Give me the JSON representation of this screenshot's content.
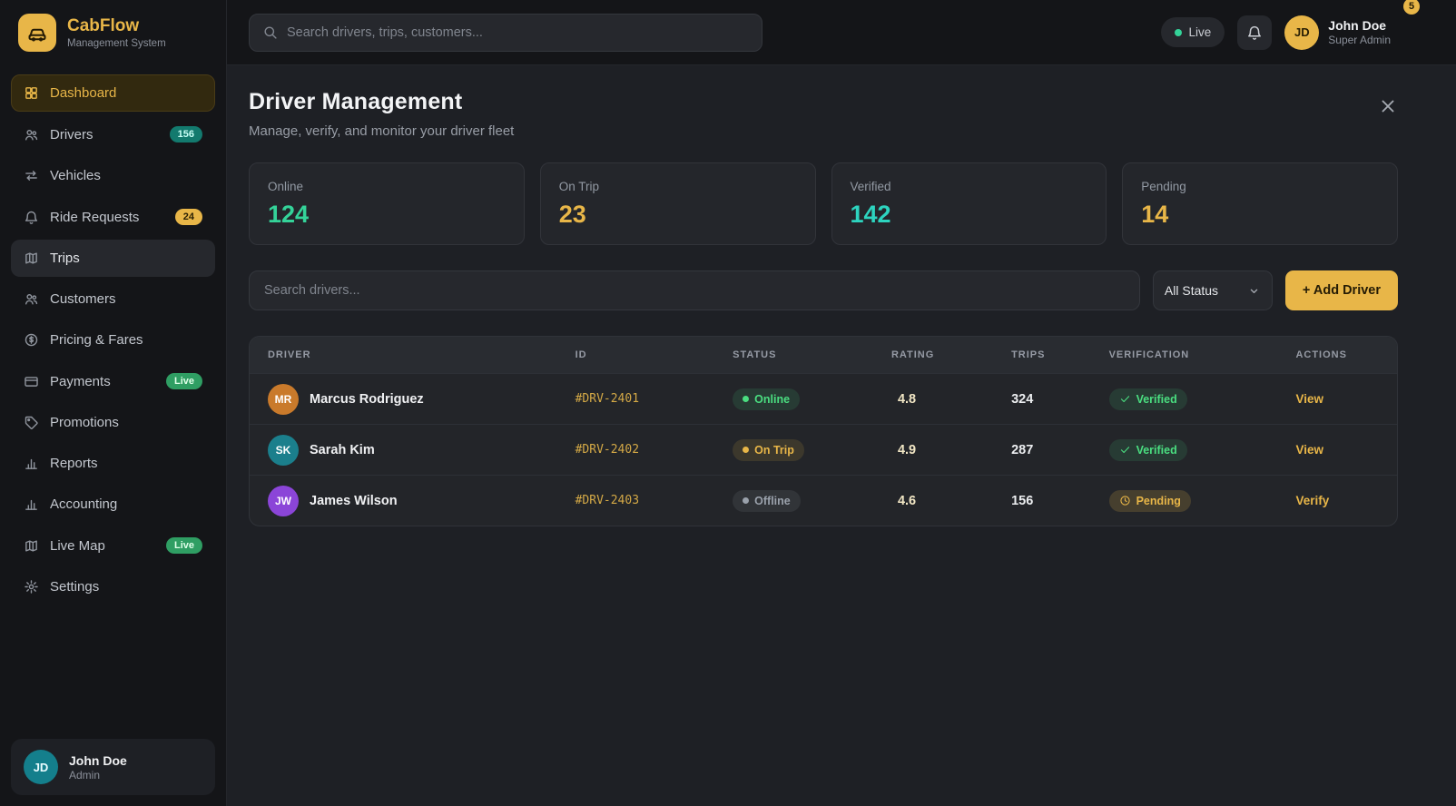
{
  "app": {
    "name": "CabFlow",
    "tagline": "Management System",
    "notification_count": "5",
    "accent_color": "#e8b648"
  },
  "topbar": {
    "search_placeholder": "Search drivers, trips, customers...",
    "live_label": "Live",
    "user": {
      "initials": "JD",
      "name": "John Doe",
      "role": "Super Admin"
    }
  },
  "sidebar": {
    "items": [
      {
        "label": "Dashboard",
        "icon": "dashboard",
        "active": true
      },
      {
        "label": "Drivers",
        "icon": "users",
        "badge": "156",
        "badge_type": "teal"
      },
      {
        "label": "Vehicles",
        "icon": "swap"
      },
      {
        "label": "Ride Requests",
        "icon": "bell",
        "badge": "24",
        "badge_type": "gold"
      },
      {
        "label": "Trips",
        "icon": "map",
        "highlight": true
      },
      {
        "label": "Customers",
        "icon": "users"
      },
      {
        "label": "Pricing & Fares",
        "icon": "dollar"
      },
      {
        "label": "Payments",
        "icon": "card",
        "badge": "Live",
        "badge_type": "green"
      },
      {
        "label": "Promotions",
        "icon": "tag"
      },
      {
        "label": "Reports",
        "icon": "chart"
      },
      {
        "label": "Accounting",
        "icon": "chart"
      },
      {
        "label": "Live Map",
        "icon": "map",
        "badge": "Live",
        "badge_type": "green"
      },
      {
        "label": "Settings",
        "icon": "gear"
      }
    ],
    "user": {
      "initials": "JD",
      "name": "John Doe",
      "role": "Admin"
    }
  },
  "page": {
    "title": "Driver Management",
    "subtitle": "Manage, verify, and monitor your driver fleet"
  },
  "stats": [
    {
      "label": "Online",
      "value": "124",
      "color": "#34d399"
    },
    {
      "label": "On Trip",
      "value": "23",
      "color": "#e8b648"
    },
    {
      "label": "Verified",
      "value": "142",
      "color": "#2dd4bf"
    },
    {
      "label": "Pending",
      "value": "14",
      "color": "#e8b648"
    }
  ],
  "filters": {
    "search_placeholder": "Search drivers...",
    "status_filter": "All Status",
    "add_button": "+ Add Driver"
  },
  "table": {
    "headers": [
      "Driver",
      "ID",
      "Status",
      "Rating",
      "Trips",
      "Verification",
      "Actions"
    ],
    "rows": [
      {
        "initials": "MR",
        "avatar_color": "#c97a2b",
        "name": "Marcus Rodriguez",
        "id": "#DRV-2401",
        "status": "Online",
        "status_type": "online",
        "rating": "4.8",
        "trips": "324",
        "verification": "Verified",
        "verification_type": "verified",
        "action": "View"
      },
      {
        "initials": "SK",
        "avatar_color": "#1b7f8c",
        "name": "Sarah Kim",
        "id": "#DRV-2402",
        "status": "On Trip",
        "status_type": "ontrip",
        "rating": "4.9",
        "trips": "287",
        "verification": "Verified",
        "verification_type": "verified",
        "action": "View"
      },
      {
        "initials": "JW",
        "avatar_color": "#8b45d8",
        "name": "James Wilson",
        "id": "#DRV-2403",
        "status": "Offline",
        "status_type": "offline",
        "rating": "4.6",
        "trips": "156",
        "verification": "Pending",
        "verification_type": "pending",
        "action": "Verify"
      }
    ]
  }
}
